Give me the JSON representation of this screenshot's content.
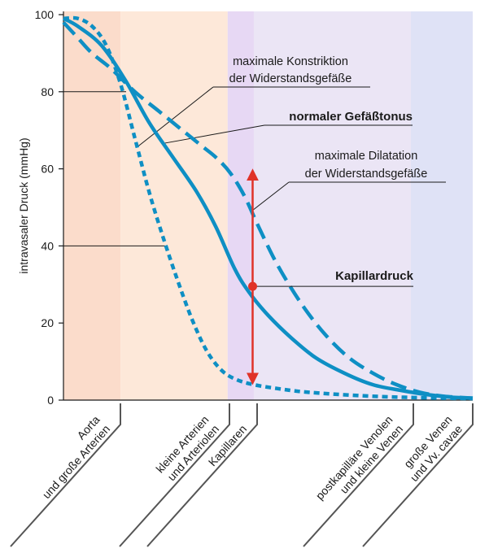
{
  "chart_data": {
    "type": "line",
    "ylabel": "intravasaler Druck (mmHg)",
    "ylim": [
      0,
      100
    ],
    "y_ticks": [
      "0",
      "20",
      "40",
      "60",
      "80",
      "100"
    ],
    "grid": false,
    "segments": [
      {
        "label_lines": [
          "Aorta",
          "und große Arterien"
        ],
        "color": "#fbdccb",
        "x": [
          0,
          0.24
        ]
      },
      {
        "label_lines": [
          "kleine Arterien",
          "und Arteriolen"
        ],
        "color": "#fde8d9",
        "x": [
          0.24,
          0.69
        ]
      },
      {
        "label_lines": [
          "Kapillaren"
        ],
        "color": "#e7d8f4",
        "x": [
          0.69,
          0.8
        ]
      },
      {
        "label_lines": [
          "postkapilläre Venolen",
          "und kleine Venen"
        ],
        "color": "#ebe5f5",
        "x": [
          0.8,
          1.46
        ]
      },
      {
        "label_lines": [
          "große Venen",
          "und Vv. cavae"
        ],
        "color": "#dfe2f6",
        "x": [
          1.46,
          1.72
        ]
      }
    ],
    "series": [
      {
        "label_lines": [
          "normaler Gefäßtonus"
        ],
        "style": "solid",
        "color": "#0e8fc4",
        "x": [
          0,
          0.06,
          0.16,
          0.26,
          0.36,
          0.46,
          0.56,
          0.64,
          0.72,
          0.78,
          0.86,
          0.96,
          1.06,
          1.18,
          1.3,
          1.42,
          1.52,
          1.62,
          1.72
        ],
        "y": [
          99,
          97,
          92,
          83,
          72,
          63,
          54,
          45,
          34,
          28,
          22,
          16,
          11,
          7,
          4,
          2.5,
          1.5,
          0.8,
          0.5
        ]
      },
      {
        "label_lines": [
          "maximale Konstriktion",
          "der Widerstandsgefäße"
        ],
        "style": "short-dash",
        "color": "#0e8fc4",
        "x": [
          0,
          0.06,
          0.12,
          0.18,
          0.24,
          0.3,
          0.36,
          0.42,
          0.48,
          0.54,
          0.6,
          0.66,
          0.72,
          0.8,
          0.9,
          1.0,
          1.15,
          1.3,
          1.45,
          1.6,
          1.72
        ],
        "y": [
          99,
          99,
          97,
          92,
          82,
          68,
          54,
          42,
          31,
          21,
          13,
          8,
          5.5,
          4,
          3,
          2.2,
          1.5,
          1.0,
          0.7,
          0.5,
          0.4
        ]
      },
      {
        "label_lines": [
          "maximale Dilatation",
          "der Widerstandsgefäße"
        ],
        "style": "long-dash",
        "color": "#0e8fc4",
        "x": [
          0,
          0.06,
          0.12,
          0.2,
          0.3,
          0.4,
          0.5,
          0.58,
          0.64,
          0.7,
          0.76,
          0.82,
          0.9,
          1.0,
          1.1,
          1.2,
          1.3,
          1.4,
          1.5,
          1.6,
          1.72
        ],
        "y": [
          98,
          94,
          90,
          86,
          80,
          75,
          70,
          66,
          63,
          59,
          53,
          45,
          35,
          25,
          17,
          11,
          7,
          4,
          2,
          1,
          0.5
        ]
      }
    ],
    "annotations": [
      {
        "text_lines": [
          "Kapillardruck"
        ],
        "bold": true,
        "x": 0.795,
        "y": 29.5
      }
    ],
    "capillary_range_arrow": {
      "x": 0.795,
      "y_from": 5.5,
      "y_to": 58.5,
      "color": "#e03328"
    }
  }
}
